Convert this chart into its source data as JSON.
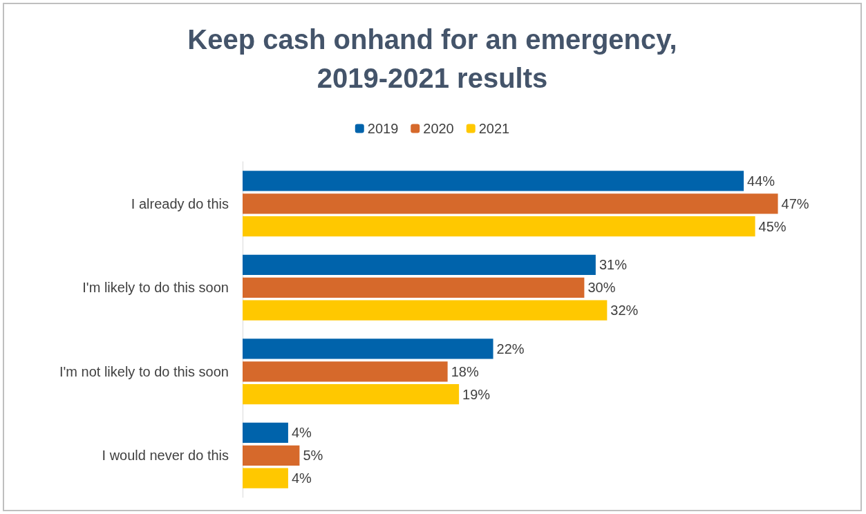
{
  "chart_data": {
    "type": "bar",
    "orientation": "horizontal",
    "title": "Keep cash onhand for an emergency,\n2019-2021 results",
    "categories": [
      "I already do this",
      "I'm likely to do this soon",
      "I'm not likely to do this soon",
      "I would never do this"
    ],
    "series": [
      {
        "name": "2019",
        "color": "#0063ab",
        "values": [
          44,
          31,
          22,
          4
        ],
        "value_labels": [
          "44%",
          "31%",
          "22%",
          "4%"
        ]
      },
      {
        "name": "2020",
        "color": "#d6692b",
        "values": [
          47,
          30,
          18,
          5
        ],
        "value_labels": [
          "47%",
          "30%",
          "18%",
          "5%"
        ]
      },
      {
        "name": "2021",
        "color": "#ffc800",
        "values": [
          45,
          32,
          19,
          4
        ],
        "value_labels": [
          "45%",
          "32%",
          "19%",
          "4%"
        ]
      }
    ],
    "grid": false,
    "legend": "top"
  }
}
